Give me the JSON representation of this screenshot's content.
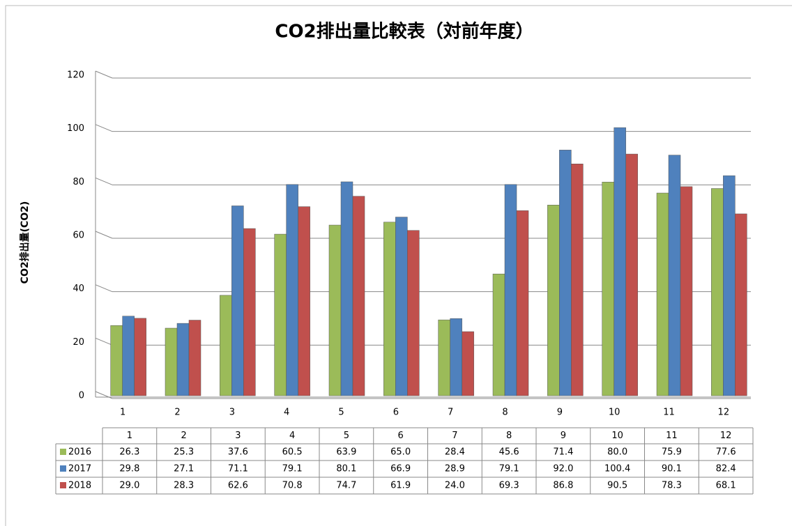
{
  "chart_data": {
    "type": "bar",
    "title": "CO2排出量比較表（対前年度）",
    "y_label": "CO2排出量(CO2)",
    "categories": [
      "1",
      "2",
      "3",
      "4",
      "5",
      "6",
      "7",
      "8",
      "9",
      "10",
      "11",
      "12"
    ],
    "series": [
      {
        "name": "2016",
        "color": "#9bbb59",
        "values": [
          26.3,
          25.3,
          37.6,
          60.5,
          63.9,
          65.0,
          28.4,
          45.6,
          71.4,
          80.0,
          75.9,
          77.6
        ],
        "value_labels": [
          "26.3",
          "25.3",
          "37.6",
          "60.5",
          "63.9",
          "65.0",
          "28.4",
          "45.6",
          "71.4",
          "80.0",
          "75.9",
          "77.6"
        ]
      },
      {
        "name": "2017",
        "color": "#4f81bd",
        "values": [
          29.8,
          27.1,
          71.1,
          79.1,
          80.1,
          66.9,
          28.9,
          79.1,
          92.0,
          100.4,
          90.1,
          82.4
        ],
        "value_labels": [
          "29.8",
          "27.1",
          "71.1",
          "79.1",
          "80.1",
          "66.9",
          "28.9",
          "79.1",
          "92.0",
          "100.4",
          "90.1",
          "82.4"
        ]
      },
      {
        "name": "2018",
        "color": "#c0504d",
        "values": [
          29.0,
          28.3,
          62.6,
          70.8,
          74.7,
          61.9,
          24.0,
          69.3,
          86.8,
          90.5,
          78.3,
          68.1
        ],
        "value_labels": [
          "29.0",
          "28.3",
          "62.6",
          "70.8",
          "74.7",
          "61.9",
          "24.0",
          "69.3",
          "86.8",
          "90.5",
          "78.3",
          "68.1"
        ]
      }
    ],
    "ylim": [
      0,
      120
    ],
    "yticks": [
      0,
      20,
      40,
      60,
      80,
      100,
      120
    ],
    "grid": true
  }
}
